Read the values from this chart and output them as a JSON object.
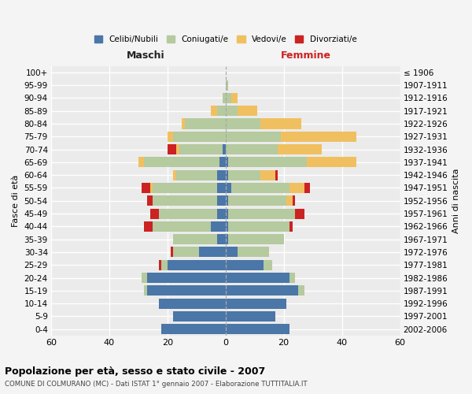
{
  "age_groups": [
    "0-4",
    "5-9",
    "10-14",
    "15-19",
    "20-24",
    "25-29",
    "30-34",
    "35-39",
    "40-44",
    "45-49",
    "50-54",
    "55-59",
    "60-64",
    "65-69",
    "70-74",
    "75-79",
    "80-84",
    "85-89",
    "90-94",
    "95-99",
    "100+"
  ],
  "birth_years": [
    "2002-2006",
    "1997-2001",
    "1992-1996",
    "1987-1991",
    "1982-1986",
    "1977-1981",
    "1972-1976",
    "1967-1971",
    "1962-1966",
    "1957-1961",
    "1952-1956",
    "1947-1951",
    "1942-1946",
    "1937-1941",
    "1932-1936",
    "1927-1931",
    "1922-1926",
    "1917-1921",
    "1912-1916",
    "1907-1911",
    "≤ 1906"
  ],
  "male": {
    "celibi": [
      22,
      18,
      23,
      27,
      27,
      20,
      9,
      3,
      5,
      3,
      3,
      3,
      3,
      2,
      1,
      0,
      0,
      0,
      0,
      0,
      0
    ],
    "coniugati": [
      0,
      0,
      0,
      1,
      2,
      2,
      9,
      15,
      20,
      20,
      22,
      22,
      14,
      26,
      15,
      18,
      14,
      3,
      1,
      0,
      0
    ],
    "vedovi": [
      0,
      0,
      0,
      0,
      0,
      0,
      0,
      0,
      0,
      0,
      0,
      1,
      1,
      2,
      1,
      2,
      1,
      2,
      0,
      0,
      0
    ],
    "divorziati": [
      0,
      0,
      0,
      0,
      0,
      1,
      1,
      0,
      3,
      3,
      2,
      3,
      0,
      0,
      3,
      0,
      0,
      0,
      0,
      0,
      0
    ]
  },
  "female": {
    "nubili": [
      22,
      17,
      21,
      25,
      22,
      13,
      4,
      1,
      1,
      1,
      1,
      2,
      1,
      1,
      0,
      0,
      0,
      0,
      0,
      0,
      0
    ],
    "coniugate": [
      0,
      0,
      0,
      2,
      2,
      3,
      11,
      19,
      21,
      23,
      20,
      20,
      11,
      27,
      18,
      19,
      12,
      4,
      2,
      1,
      0
    ],
    "vedove": [
      0,
      0,
      0,
      0,
      0,
      0,
      0,
      0,
      0,
      0,
      2,
      5,
      5,
      17,
      15,
      26,
      14,
      7,
      2,
      0,
      0
    ],
    "divorziate": [
      0,
      0,
      0,
      0,
      0,
      0,
      0,
      0,
      1,
      3,
      1,
      2,
      1,
      0,
      0,
      0,
      0,
      0,
      0,
      0,
      0
    ]
  },
  "colors": {
    "celibi": "#4a76a8",
    "coniugati": "#b5ca9e",
    "vedovi": "#f0c060",
    "divorziati": "#cc2222"
  },
  "title": "Popolazione per età, sesso e stato civile - 2007",
  "subtitle": "COMUNE DI COLMURANO (MC) - Dati ISTAT 1° gennaio 2007 - Elaborazione TUTTITALIA.IT",
  "xlabel_left": "Maschi",
  "xlabel_right": "Femmine",
  "ylabel_left": "Fasce di età",
  "ylabel_right": "Anni di nascita",
  "xlim": 60,
  "bg_color": "#ebebeb",
  "fig_color": "#f4f4f4",
  "grid_color": "#ffffff",
  "legend_labels": [
    "Celibi/Nubili",
    "Coniugati/e",
    "Vedovi/e",
    "Divorziati/e"
  ]
}
